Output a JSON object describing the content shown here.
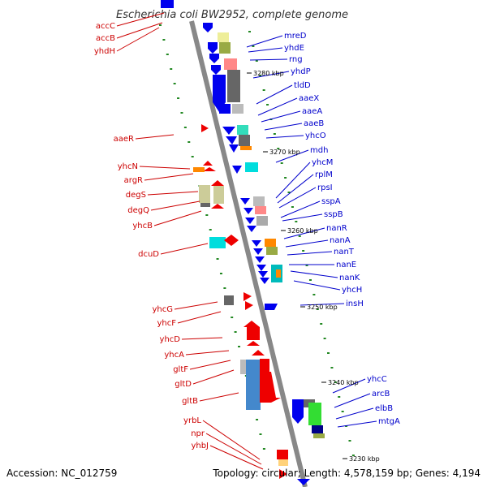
{
  "title": "Escherichia coli BW2952, complete genome",
  "footer": {
    "accession": "Accession: NC_012759",
    "stats": "Topology: circular; Length: 4,578,159 bp; Genes: 4,194"
  },
  "colors": {
    "forward": "#ee0000",
    "reverse": "#0000ee",
    "forward_label": "#cc0000",
    "reverse_label": "#0000cc",
    "backbone": "#888888",
    "dots": "#228822"
  },
  "kbp_marks": [
    "3280 kbp",
    "3270 kbp",
    "3260 kbp",
    "3250 kbp",
    "3240 kbp",
    "3230 kbp"
  ],
  "left_genes": [
    "accC",
    "accB",
    "yhdH",
    "aaeR",
    "yhcN",
    "argR",
    "degS",
    "degQ",
    "yhcB",
    "dcuD",
    "yhcG",
    "yhcF",
    "yhcD",
    "yhcA",
    "gltF",
    "gltD",
    "gltB",
    "yrbL",
    "npr",
    "yhbJ"
  ],
  "right_genes": [
    "mreD",
    "yhdE",
    "rng",
    "yhdP",
    "tldD",
    "aaeX",
    "aaeA",
    "aaeB",
    "yhcO",
    "mdh",
    "yhcM",
    "rplM",
    "rpsI",
    "sspA",
    "sspB",
    "nanR",
    "nanA",
    "nanT",
    "nanE",
    "nanK",
    "yhcH",
    "insH",
    "yhcC",
    "arcB",
    "elbB",
    "mtgA"
  ]
}
